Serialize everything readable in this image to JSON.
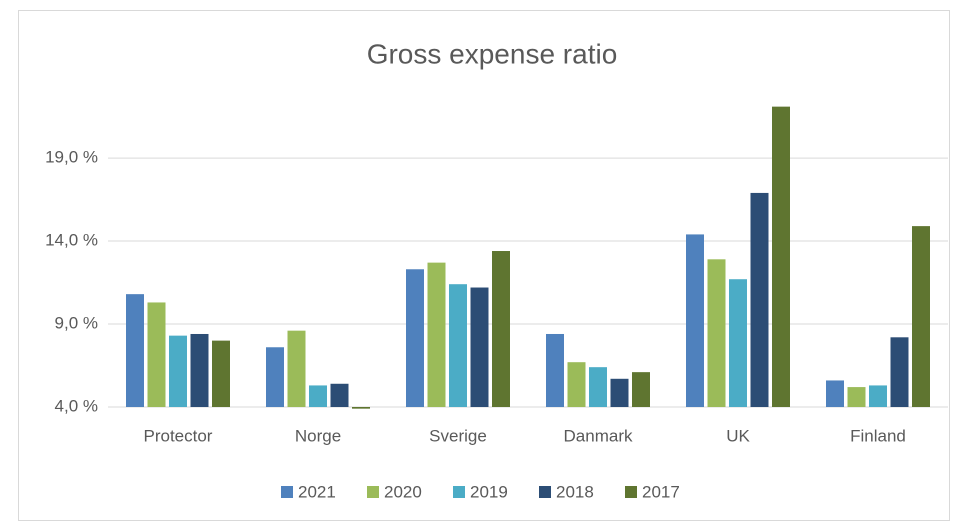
{
  "chart_data": {
    "type": "bar",
    "title": "Gross expense ratio",
    "categories": [
      "Protector",
      "Norge",
      "Sverige",
      "Danmark",
      "UK",
      "Finland"
    ],
    "series": [
      {
        "name": "2021",
        "color": "#4f81bd",
        "values": [
          10.8,
          7.6,
          12.3,
          8.4,
          14.4,
          5.6
        ]
      },
      {
        "name": "2020",
        "color": "#9bbb59",
        "values": [
          10.3,
          8.6,
          12.7,
          6.7,
          12.9,
          5.2
        ]
      },
      {
        "name": "2019",
        "color": "#4bacc6",
        "values": [
          8.3,
          5.3,
          11.4,
          6.4,
          11.7,
          5.3
        ]
      },
      {
        "name": "2018",
        "color": "#2c4d75",
        "values": [
          8.4,
          5.4,
          11.2,
          5.7,
          16.9,
          8.2
        ]
      },
      {
        "name": "2017",
        "color": "#5f7530",
        "values": [
          8.0,
          3.9,
          13.4,
          6.1,
          22.1,
          14.9
        ]
      }
    ],
    "ylim": [
      4,
      22.5
    ],
    "yticks": [
      {
        "value": 4,
        "label": "4,0 %"
      },
      {
        "value": 9,
        "label": "9,0 %"
      },
      {
        "value": 14,
        "label": "14,0 %"
      },
      {
        "value": 19,
        "label": "19,0 %"
      }
    ],
    "grid": true,
    "legend": "bottom"
  }
}
